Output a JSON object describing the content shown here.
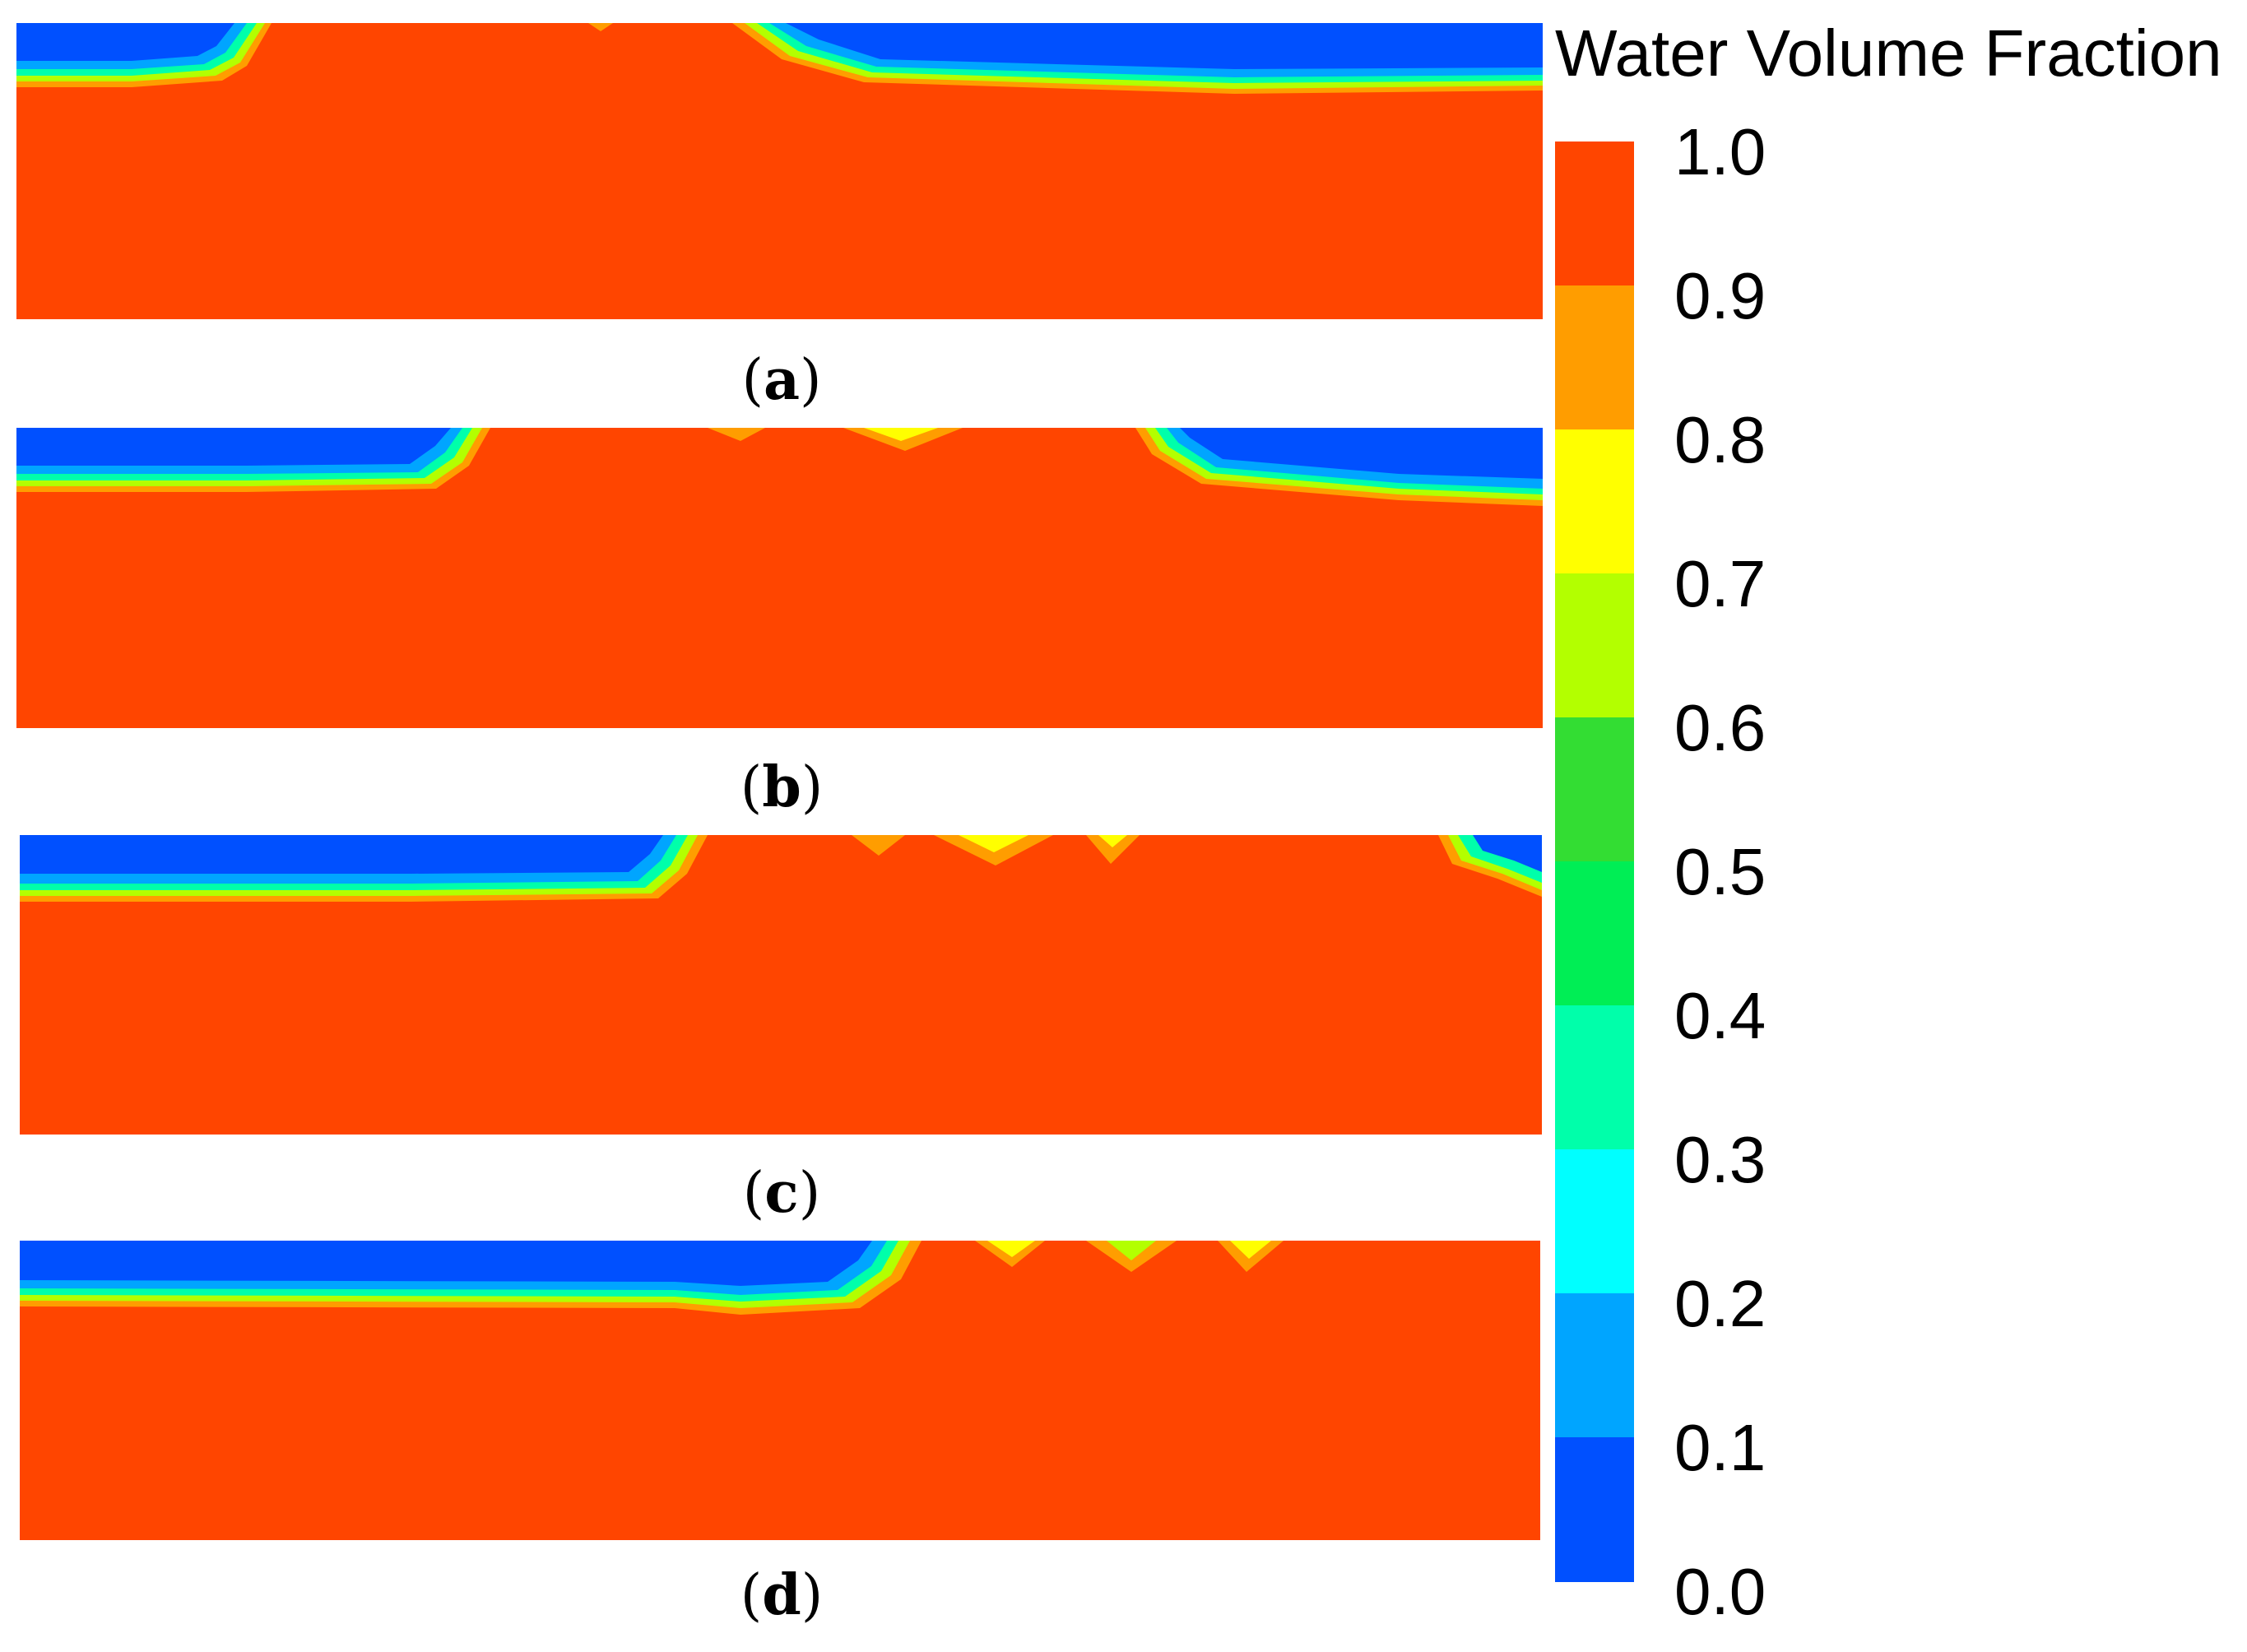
{
  "legend": {
    "title": "Water Volume Fraction",
    "ticks": [
      "1.0",
      "0.9",
      "0.8",
      "0.7",
      "0.6",
      "0.5",
      "0.4",
      "0.3",
      "0.2",
      "0.1",
      "0.0"
    ],
    "colors_top_to_bottom": [
      "#ff4500",
      "#ff9d00",
      "#ffff00",
      "#b3ff00",
      "#33dd33",
      "#00ee55",
      "#00ffaa",
      "#00ffff",
      "#00a5ff",
      "#0050ff"
    ]
  },
  "panels": [
    {
      "id": "a",
      "open": "(",
      "letter": "a",
      "close": ")"
    },
    {
      "id": "b",
      "open": "(",
      "letter": "b",
      "close": ")"
    },
    {
      "id": "c",
      "open": "(",
      "letter": "c",
      "close": ")"
    },
    {
      "id": "d",
      "open": "(",
      "letter": "d",
      "close": ")"
    }
  ],
  "colors": {
    "water": "#ff4500",
    "orange": "#ff9d00",
    "yellow": "#ffff00",
    "lime": "#b3ff00",
    "green": "#33dd33",
    "teal": "#00ffaa",
    "cyan": "#00ffff",
    "sky": "#00a5ff",
    "blue": "#0050ff"
  }
}
